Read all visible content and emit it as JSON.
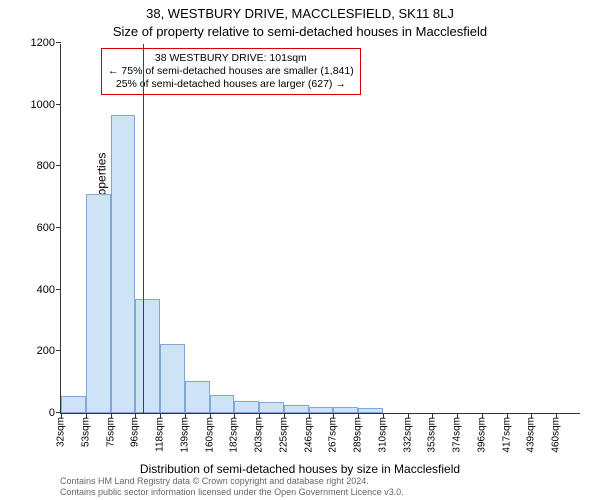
{
  "title": "38, WESTBURY DRIVE, MACCLESFIELD, SK11 8LJ",
  "subtitle": "Size of property relative to semi-detached houses in Macclesfield",
  "ylabel": "Number of semi-detached properties",
  "xlabel": "Distribution of semi-detached houses by size in Macclesfield",
  "footer1": "Contains HM Land Registry data © Crown copyright and database right 2024.",
  "footer2": "Contains public sector information licensed under the Open Government Licence v3.0.",
  "chart": {
    "type": "histogram",
    "background_color": "#ffffff",
    "axis_color": "#333333",
    "bar_fill": "#cfe3f7",
    "bar_border": "#7fa9d4",
    "ref_line_color": "#d00000",
    "annotation_border": "#d00000",
    "ylim": [
      0,
      1200
    ],
    "ytick_step": 200,
    "x_start": 32,
    "x_end": 470,
    "x_tick_step": 21.4,
    "x_tick_count": 21,
    "x_tick_unit": "sqm",
    "values": [
      55,
      710,
      965,
      370,
      225,
      105,
      60,
      40,
      35,
      25,
      20,
      20,
      15,
      0,
      0,
      0,
      0,
      0,
      0,
      0,
      0
    ],
    "reference_value": 101,
    "tick_fontsize": 11,
    "label_fontsize": 12,
    "title_fontsize": 13
  },
  "annotation": {
    "line1": "38 WESTBURY DRIVE: 101sqm",
    "line2": "← 75% of semi-detached houses are smaller (1,841)",
    "line3": "25% of semi-detached houses are larger (627) →"
  }
}
